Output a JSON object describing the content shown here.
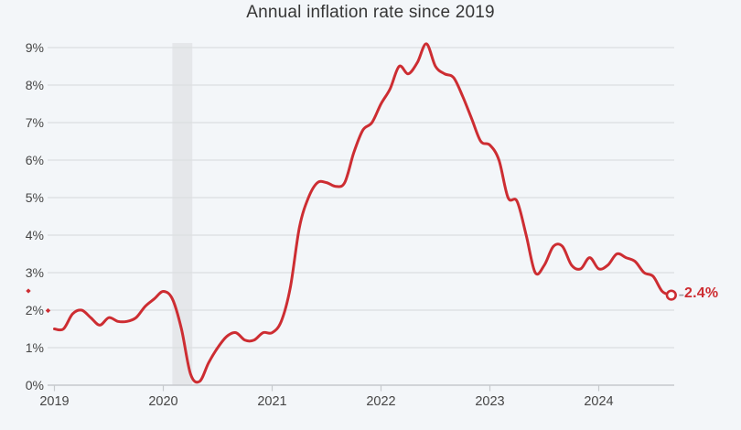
{
  "chart_data": {
    "type": "line",
    "title": "Annual inflation rate since 2019",
    "unit": "%",
    "frequency": "monthly",
    "start": "2019-01",
    "series": [
      {
        "name": "Annual inflation rate",
        "values": [
          1.5,
          1.5,
          1.9,
          2.0,
          1.8,
          1.6,
          1.8,
          1.7,
          1.7,
          1.8,
          2.1,
          2.3,
          2.5,
          2.3,
          1.5,
          0.3,
          0.1,
          0.6,
          1.0,
          1.3,
          1.4,
          1.2,
          1.2,
          1.4,
          1.4,
          1.7,
          2.6,
          4.2,
          5.0,
          5.4,
          5.4,
          5.3,
          5.4,
          6.2,
          6.8,
          7.0,
          7.5,
          7.9,
          8.5,
          8.3,
          8.6,
          9.1,
          8.5,
          8.3,
          8.2,
          7.7,
          7.1,
          6.5,
          6.4,
          6.0,
          5.0,
          4.9,
          4.0,
          3.0,
          3.2,
          3.7,
          3.7,
          3.2,
          3.1,
          3.4,
          3.1,
          3.2,
          3.5,
          3.4,
          3.3,
          3.0,
          2.9,
          2.5,
          2.4
        ]
      }
    ],
    "ylim": [
      0,
      9
    ],
    "y_tick_labels": [
      "0%",
      "1%",
      "2%",
      "3%",
      "4%",
      "5%",
      "6%",
      "7%",
      "8%",
      "9%"
    ],
    "x_tick_labels": [
      "2019",
      "2020",
      "2021",
      "2022",
      "2023",
      "2024"
    ],
    "x_tick_month_indices": [
      0,
      12,
      24,
      36,
      48,
      60
    ],
    "grid": "horizontal",
    "legend": "none",
    "end_point": {
      "label": "2.4%",
      "value": 2.4
    },
    "shaded_band": {
      "from": "2020-02",
      "to": "2020-04",
      "from_index": 13,
      "to_index": 15
    },
    "colors": {
      "line": "#cd2d32",
      "end_label": "#cd2d32",
      "background": "#f3f6f9",
      "gridline": "#dcdee1",
      "axis": "#c6c9cd",
      "band": "#e5e7ea",
      "tick_text": "#454545",
      "title_text": "#363636",
      "dash": "#9a9da1"
    }
  }
}
